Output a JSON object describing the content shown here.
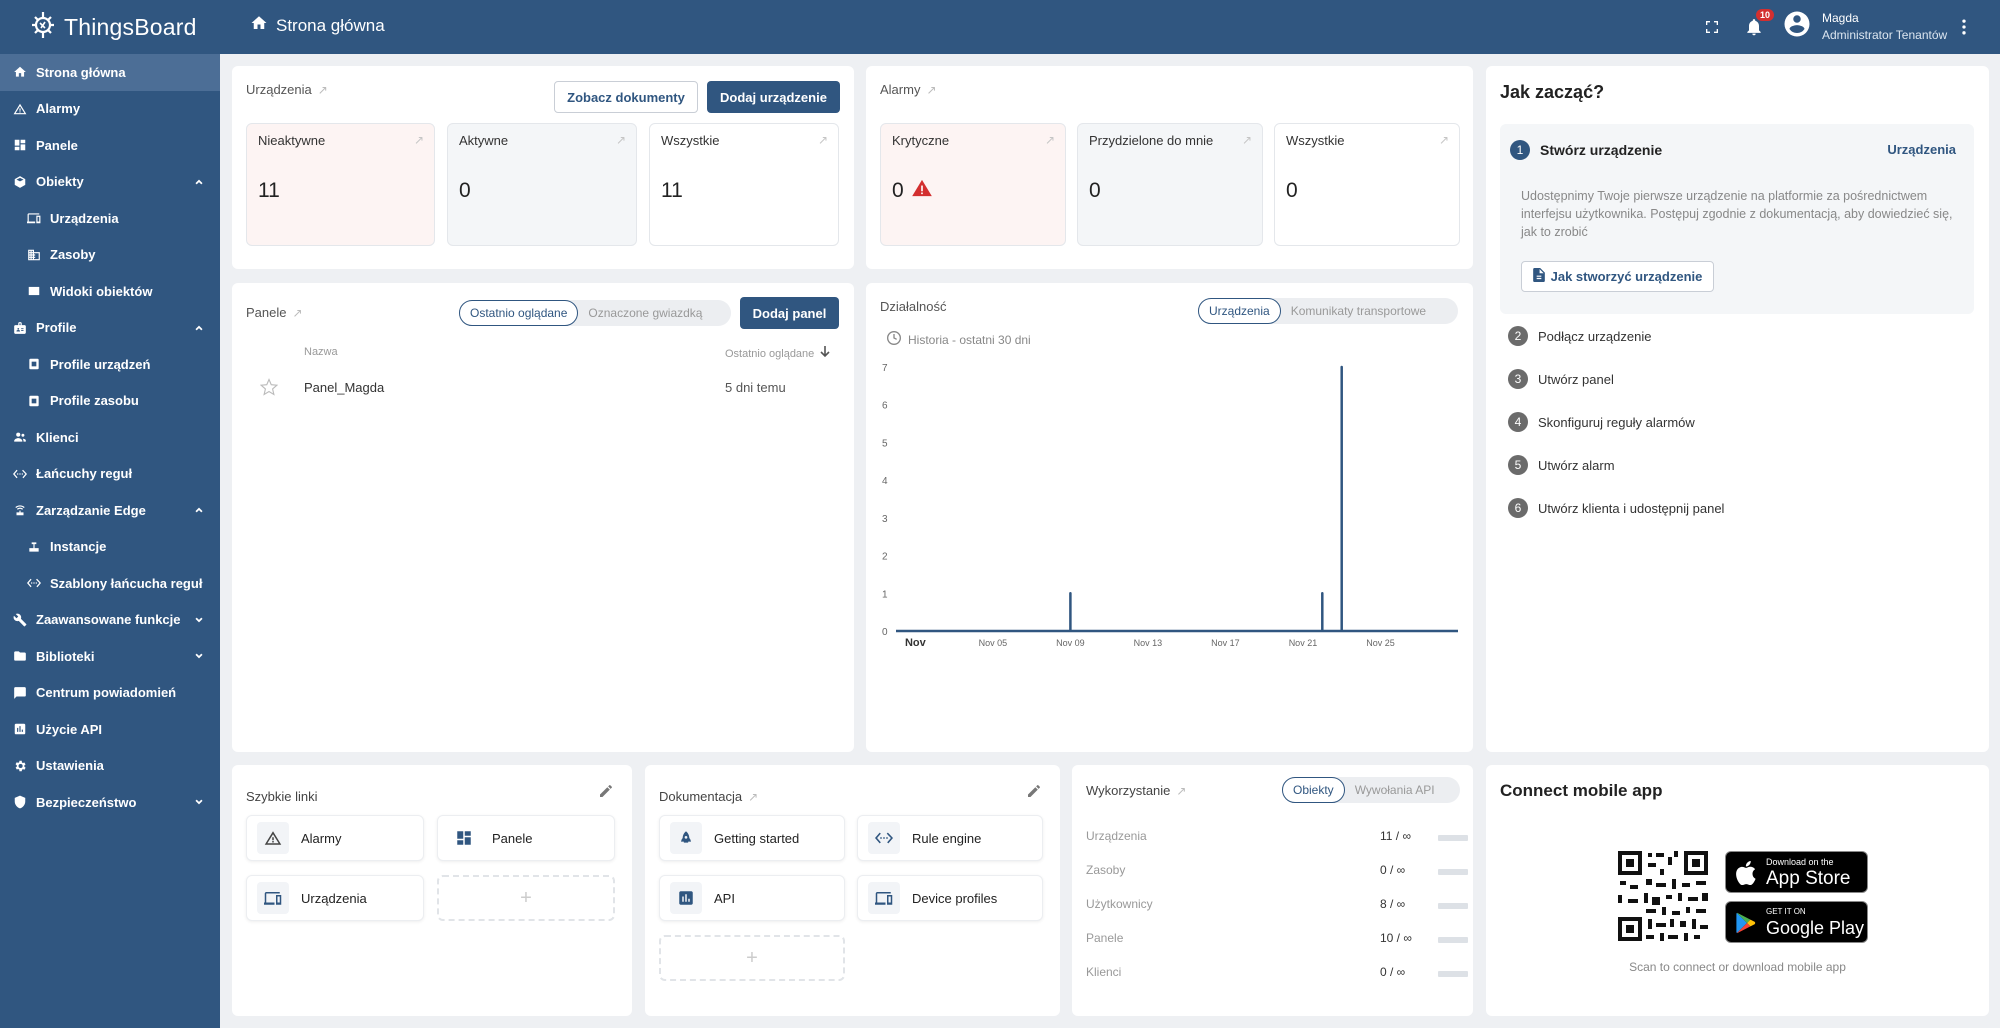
{
  "app": {
    "name": "ThingsBoard",
    "page_title": "Strona główna"
  },
  "header": {
    "notifications_count": "10",
    "user_name": "Magda",
    "user_role": "Administrator Tenantów"
  },
  "sidebar": {
    "items": [
      {
        "label": "Strona główna"
      },
      {
        "label": "Alarmy"
      },
      {
        "label": "Panele"
      },
      {
        "label": "Obiekty"
      },
      {
        "label": "Urządzenia"
      },
      {
        "label": "Zasoby"
      },
      {
        "label": "Widoki obiektów"
      },
      {
        "label": "Profile"
      },
      {
        "label": "Profile urządzeń"
      },
      {
        "label": "Profile zasobu"
      },
      {
        "label": "Klienci"
      },
      {
        "label": "Łańcuchy reguł"
      },
      {
        "label": "Zarządzanie Edge"
      },
      {
        "label": "Instancje"
      },
      {
        "label": "Szablony łańcucha reguł"
      },
      {
        "label": "Zaawansowane funkcje"
      },
      {
        "label": "Biblioteki"
      },
      {
        "label": "Centrum powiadomień"
      },
      {
        "label": "Użycie API"
      },
      {
        "label": "Ustawienia"
      },
      {
        "label": "Bezpieczeństwo"
      }
    ]
  },
  "devices": {
    "title": "Urządzenia",
    "docs_button": "Zobacz dokumenty",
    "add_button": "Dodaj urządzenie",
    "stats": [
      {
        "label": "Nieaktywne",
        "value": "11"
      },
      {
        "label": "Aktywne",
        "value": "0"
      },
      {
        "label": "Wszystkie",
        "value": "11"
      }
    ]
  },
  "alarms": {
    "title": "Alarmy",
    "stats": [
      {
        "label": "Krytyczne",
        "value": "0"
      },
      {
        "label": "Przydzielone do mnie",
        "value": "0"
      },
      {
        "label": "Wszystkie",
        "value": "0"
      }
    ]
  },
  "dashboards": {
    "title": "Panele",
    "tab_recent": "Ostatnio oglądane",
    "tab_starred": "Oznaczone gwiazdką",
    "add_button": "Dodaj panel",
    "col_name": "Nazwa",
    "col_viewed": "Ostatnio oglądane",
    "rows": [
      {
        "name": "Panel_Magda",
        "viewed": "5 dni temu"
      }
    ]
  },
  "activity": {
    "title": "Działalność",
    "tab_devices": "Urządzenia",
    "tab_transport": "Komunikaty transportowe",
    "history_label": "Historia - ostatni 30 dni"
  },
  "chart_data": {
    "type": "line",
    "title": "",
    "ylim": [
      0,
      7
    ],
    "y_ticks": [
      "0",
      "1",
      "2",
      "3",
      "4",
      "5",
      "6",
      "7"
    ],
    "x_ticks": [
      "Nov",
      "Nov 05",
      "Nov 09",
      "Nov 13",
      "Nov 17",
      "Nov 21",
      "Nov 25"
    ],
    "x_range": [
      "2023-10-31",
      "2023-11-29"
    ],
    "series": [
      {
        "color": "#305680",
        "points": [
          [
            "2023-10-31",
            0
          ],
          [
            "2023-11-09",
            0
          ],
          [
            "2023-11-09",
            1
          ],
          [
            "2023-11-09",
            0
          ],
          [
            "2023-11-22",
            0
          ],
          [
            "2023-11-22",
            1
          ],
          [
            "2023-11-22",
            0
          ],
          [
            "2023-11-23",
            0
          ],
          [
            "2023-11-23",
            1
          ],
          [
            "2023-11-23",
            2
          ],
          [
            "2023-11-23",
            7
          ],
          [
            "2023-11-23",
            0
          ],
          [
            "2023-11-29",
            0
          ]
        ]
      }
    ]
  },
  "getting_started": {
    "title": "Jak zacząć?",
    "step1_title": "Stwórz urządzenie",
    "step1_link": "Urządzenia",
    "step1_text": "Udostępnimy Twoje pierwsze urządzenie na platformie za pośrednictwem interfejsu użytkownika. Postępuj zgodnie z dokumentacją, aby dowiedzieć się, jak to zrobić",
    "step1_button": "Jak stworzyć urządzenie",
    "steps": [
      {
        "num": "1"
      },
      {
        "num": "2",
        "label": "Podłącz urządzenie"
      },
      {
        "num": "3",
        "label": "Utwórz panel"
      },
      {
        "num": "4",
        "label": "Skonfiguruj reguły alarmów"
      },
      {
        "num": "5",
        "label": "Utwórz alarm"
      },
      {
        "num": "6",
        "label": "Utwórz klienta i udostępnij panel"
      }
    ]
  },
  "quick_links": {
    "title": "Szybkie linki",
    "links": [
      {
        "label": "Alarmy"
      },
      {
        "label": "Panele"
      },
      {
        "label": "Urządzenia"
      }
    ],
    "add": "+"
  },
  "documentation": {
    "title": "Dokumentacja",
    "links": [
      {
        "label": "Getting started"
      },
      {
        "label": "Rule engine"
      },
      {
        "label": "API"
      },
      {
        "label": "Device profiles"
      }
    ],
    "add": "+"
  },
  "usage": {
    "title": "Wykorzystanie",
    "tab_entities": "Obiekty",
    "tab_api": "Wywołania API",
    "rows": [
      {
        "label": "Urządzenia",
        "value": "11 / ∞"
      },
      {
        "label": "Zasoby",
        "value": "0 / ∞"
      },
      {
        "label": "Użytkownicy",
        "value": "8 / ∞"
      },
      {
        "label": "Panele",
        "value": "10 / ∞"
      },
      {
        "label": "Klienci",
        "value": "0 / ∞"
      }
    ]
  },
  "mobile": {
    "title": "Connect mobile app",
    "appstore_small": "Download on the",
    "appstore_big": "App Store",
    "gplay_small": "GET IT ON",
    "gplay_big": "Google Play",
    "caption": "Scan to connect or download mobile app"
  },
  "colors": {
    "primary": "#305680",
    "critical": "#d32f2f"
  }
}
